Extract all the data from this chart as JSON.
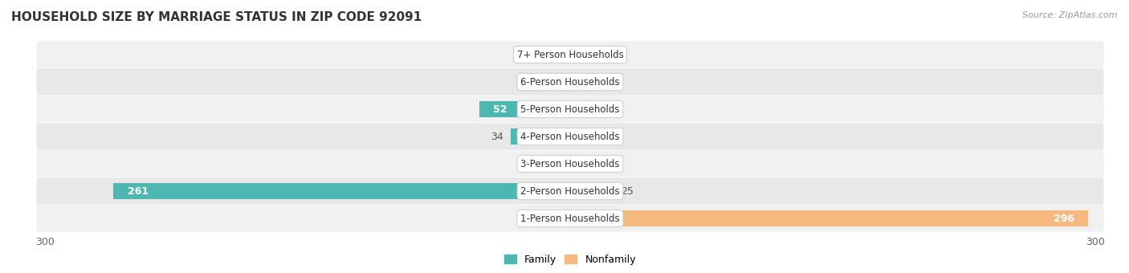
{
  "title": "HOUSEHOLD SIZE BY MARRIAGE STATUS IN ZIP CODE 92091",
  "source": "Source: ZipAtlas.com",
  "categories": [
    "7+ Person Households",
    "6-Person Households",
    "5-Person Households",
    "4-Person Households",
    "3-Person Households",
    "2-Person Households",
    "1-Person Households"
  ],
  "family": [
    0,
    0,
    52,
    34,
    0,
    261,
    0
  ],
  "nonfamily": [
    0,
    0,
    0,
    0,
    0,
    25,
    296
  ],
  "family_color": "#4DB8B2",
  "nonfamily_color": "#F5B97F",
  "row_bg_colors": [
    "#F0F0F0",
    "#E8E8E8"
  ],
  "xlim": 300,
  "label_fontsize": 9,
  "title_fontsize": 11,
  "legend_family": "Family",
  "legend_nonfamily": "Nonfamily",
  "axis_label_color": "#666666",
  "category_label_color": "#333333",
  "value_label_color_inside": "#FFFFFF",
  "value_label_color_outside": "#555555",
  "bar_height": 0.6
}
